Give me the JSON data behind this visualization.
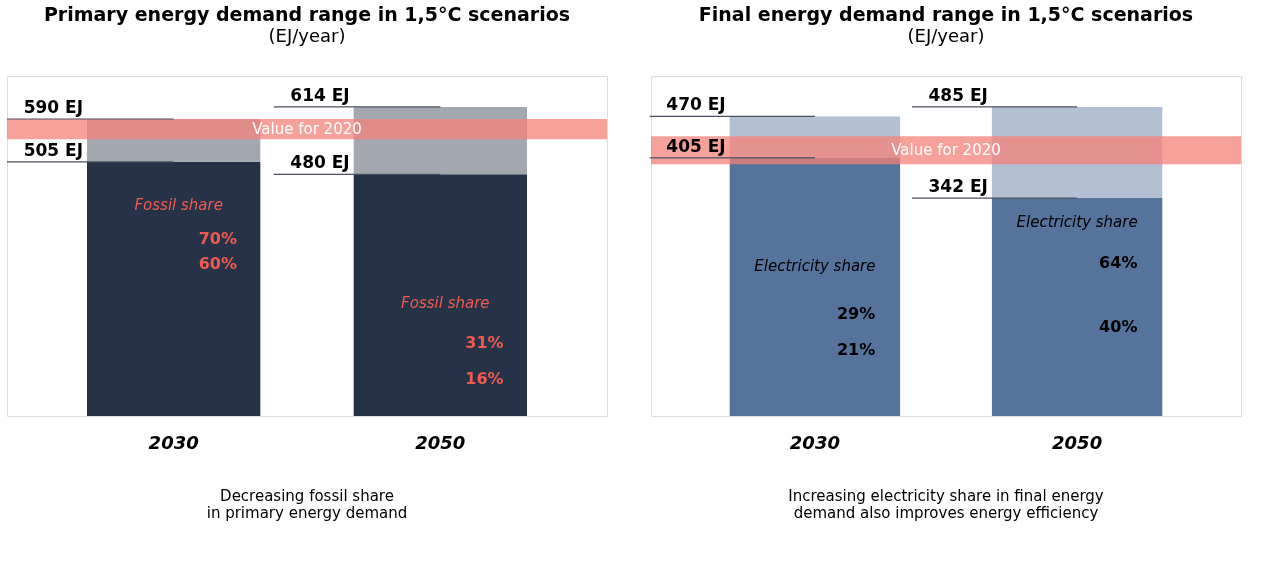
{
  "chart_data": [
    {
      "type": "bar",
      "title": "Primary energy demand range in 1,5°C scenarios",
      "subtitle": "(EJ/year)",
      "categories": [
        "2030",
        "2050"
      ],
      "stacked": true,
      "series": [
        {
          "color": "#263248",
          "values": [
            505,
            480
          ],
          "value_labels": [
            "505 EJ",
            "480 EJ"
          ]
        },
        {
          "color": "#a3a7b0",
          "values": [
            85,
            134
          ]
        }
      ],
      "bands": [
        {
          "axis": "y",
          "from": 550,
          "to": 590,
          "label": "Value for 2020",
          "color": "#f4817a"
        }
      ],
      "annotations": [
        {
          "text": "590 EJ",
          "x": "2030",
          "y": 590
        },
        {
          "text": "614 EJ",
          "x": "2050",
          "y": 614
        },
        "Fossil share",
        "70%",
        "60%",
        "Fossil share",
        "31%",
        "16%",
        "Decreasing fossil share in primary energy demand"
      ]
    },
    {
      "type": "bar",
      "title": "Final energy demand range in 1,5°C scenarios",
      "subtitle": "(EJ/year)",
      "categories": [
        "2030",
        "2050"
      ],
      "stacked": true,
      "series": [
        {
          "color": "#56739c",
          "values": [
            405,
            342
          ],
          "value_labels": [
            "405 EJ",
            "342 EJ"
          ]
        },
        {
          "color": "#b3c0d4",
          "values": [
            65,
            143
          ]
        }
      ],
      "bands": [
        {
          "axis": "y",
          "from": 395,
          "to": 439,
          "label": "Value for 2020",
          "color": "#f4817a"
        }
      ],
      "annotations": [
        {
          "text": "470 EJ",
          "x": "2030",
          "y": 470
        },
        {
          "text": "485 EJ",
          "x": "2050",
          "y": 485
        },
        "Electricity share",
        "29%",
        "21%",
        "Electricity share",
        "64%",
        "40%",
        "Increasing electricity share in final energy demand also improves energy efficiency"
      ]
    }
  ]
}
